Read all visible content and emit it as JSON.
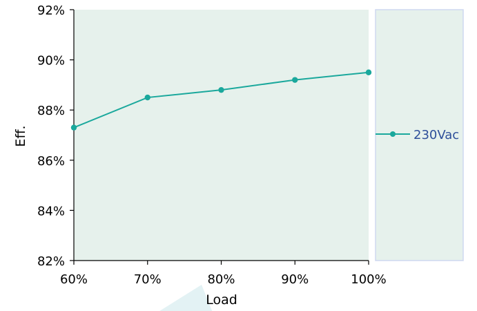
{
  "chart_data": {
    "type": "line",
    "xlabel": "Load",
    "ylabel": "Eff.",
    "x_ticks": [
      "60%",
      "70%",
      "80%",
      "90%",
      "100%"
    ],
    "y_ticks": [
      "82%",
      "84%",
      "86%",
      "88%",
      "90%",
      "92%"
    ],
    "xlim": [
      60,
      100
    ],
    "ylim": [
      82,
      92
    ],
    "grid": false,
    "legend_position": "right",
    "series": [
      {
        "name": "230Vac",
        "color": "#1aa89c",
        "x": [
          60,
          70,
          80,
          90,
          100
        ],
        "y": [
          87.3,
          88.5,
          88.8,
          89.2,
          89.5
        ]
      }
    ]
  },
  "colors": {
    "plot_background": "#e6f1ec",
    "legend_border": "#cfd8f0",
    "legend_text": "#2e4f9a",
    "axis": "#000000",
    "watermark": "#e3f2f4"
  }
}
